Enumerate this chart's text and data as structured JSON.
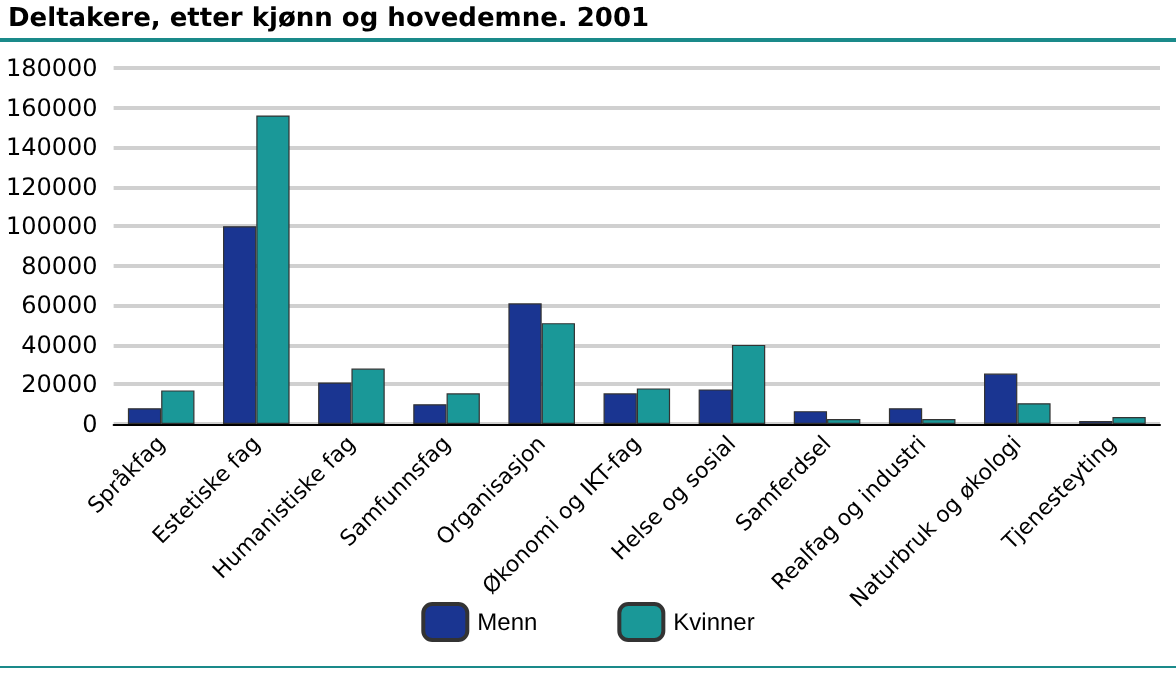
{
  "chart_data": {
    "type": "bar",
    "title": "Deltakere, etter kjønn og hovedemne. 2001",
    "categories": [
      "Språkfag",
      "Estetiske fag",
      "Humanistiske fag",
      "Samfunnsfag",
      "Organisasjon",
      "Økonomi og IKT-fag",
      "Helse og sosial",
      "Samferdsel",
      "Realfag og industri",
      "Naturbruk og økologi",
      "Tjenesteyting"
    ],
    "series": [
      {
        "name": "Menn",
        "color": "#1a3591",
        "values": [
          8000,
          100000,
          21000,
          10000,
          61000,
          15500,
          17500,
          6500,
          8000,
          25500,
          1500
        ]
      },
      {
        "name": "Kvinner",
        "color": "#1a9898",
        "values": [
          17000,
          156000,
          28000,
          15500,
          51000,
          18000,
          40000,
          2500,
          2500,
          10500,
          3500
        ]
      }
    ],
    "ylim": [
      0,
      180000
    ],
    "yticks": [
      0,
      20000,
      40000,
      60000,
      80000,
      100000,
      120000,
      140000,
      160000,
      180000
    ],
    "grid": "y",
    "legend": "bottom"
  }
}
